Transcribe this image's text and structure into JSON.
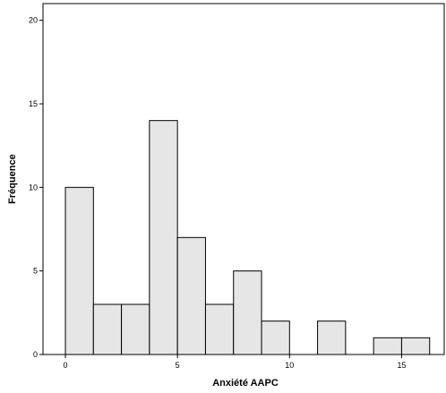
{
  "chart_data": {
    "type": "bar",
    "title": "",
    "xlabel": "Anxiété AAPC",
    "ylabel": "Fréquence",
    "bin_width": 1.25,
    "bins": [
      {
        "start": 0.0,
        "end": 1.25,
        "value": 10
      },
      {
        "start": 1.25,
        "end": 2.5,
        "value": 3
      },
      {
        "start": 2.5,
        "end": 3.75,
        "value": 3
      },
      {
        "start": 3.75,
        "end": 5.0,
        "value": 14
      },
      {
        "start": 5.0,
        "end": 6.25,
        "value": 7
      },
      {
        "start": 6.25,
        "end": 7.5,
        "value": 3
      },
      {
        "start": 7.5,
        "end": 8.75,
        "value": 5
      },
      {
        "start": 8.75,
        "end": 10.0,
        "value": 2
      },
      {
        "start": 10.0,
        "end": 11.25,
        "value": 0
      },
      {
        "start": 11.25,
        "end": 12.5,
        "value": 2
      },
      {
        "start": 12.5,
        "end": 13.75,
        "value": 0
      },
      {
        "start": 13.75,
        "end": 15.0,
        "value": 1
      },
      {
        "start": 15.0,
        "end": 16.25,
        "value": 1
      }
    ],
    "xlim": [
      -1.0,
      16.9
    ],
    "ylim": [
      0,
      21
    ],
    "xticks": [
      0,
      5,
      10,
      15
    ],
    "yticks": [
      0,
      5,
      10,
      15,
      20
    ],
    "grid": false,
    "legend": "none",
    "colors": {
      "bar_fill": "#e6e6e6",
      "bar_stroke": "#000000",
      "axis": "#000000",
      "background": "#ffffff"
    }
  }
}
